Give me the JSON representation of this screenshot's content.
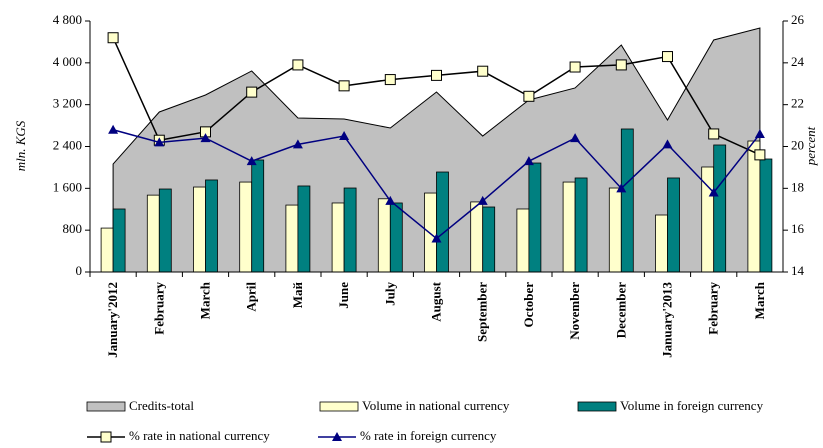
{
  "chart_data": {
    "type": "bar",
    "categories": [
      "January'2012",
      "February",
      "March",
      "April",
      "Май",
      "June",
      "July",
      "August",
      "September",
      "October",
      "November",
      "December",
      "January'2013",
      "February",
      "March"
    ],
    "y_label": "mln. KGS",
    "y2_label": "percent",
    "ylim": [
      0,
      4800
    ],
    "yticks": [
      0,
      800,
      {
        "value": 1600,
        "label": "1 600"
      },
      {
        "value": 2400,
        "label": "2 400"
      },
      {
        "value": 3200,
        "label": "3 200"
      },
      {
        "value": 4000,
        "label": "4 000"
      },
      {
        "value": 4800,
        "label": "4 800"
      }
    ],
    "y2lim": [
      14,
      26
    ],
    "y2ticks": [
      14,
      16,
      18,
      20,
      22,
      24,
      26
    ],
    "legend": "bottom",
    "series": [
      {
        "name": "Credits-total",
        "type": "area",
        "color": "#c0c0c0",
        "values": [
          2065,
          3060,
          3385,
          3844,
          2945,
          2926,
          2754,
          3442,
          2600,
          3290,
          3520,
          4340,
          2907,
          4437,
          4666
        ]
      },
      {
        "name": "Volume in national currency",
        "type": "bar",
        "color": "#ffffcc",
        "values": [
          840,
          1470,
          1625,
          1720,
          1280,
          1320,
          1400,
          1510,
          1340,
          1205,
          1720,
          1606,
          1090,
          2008,
          2505
        ]
      },
      {
        "name": "Volume in foreign currency",
        "type": "bar",
        "color": "#008080",
        "values": [
          1205,
          1587,
          1760,
          2142,
          1645,
          1606,
          1320,
          1912,
          1243,
          2084,
          1798,
          2735,
          1798,
          2429,
          2161
        ]
      },
      {
        "name": "% rate in national currency",
        "type": "line",
        "marker": "square",
        "axis": "y2",
        "color": "#000000",
        "values": [
          25.2,
          20.3,
          20.7,
          22.6,
          23.9,
          22.9,
          23.2,
          23.4,
          23.6,
          22.4,
          23.8,
          23.9,
          24.3,
          20.6,
          19.6
        ]
      },
      {
        "name": "% rate in foreign currency",
        "type": "line",
        "marker": "triangle",
        "axis": "y2",
        "color": "#000080",
        "values": [
          20.8,
          20.2,
          20.4,
          19.3,
          20.1,
          20.5,
          17.4,
          15.6,
          17.4,
          19.3,
          20.4,
          18.0,
          20.1,
          17.8,
          20.6
        ]
      }
    ]
  }
}
